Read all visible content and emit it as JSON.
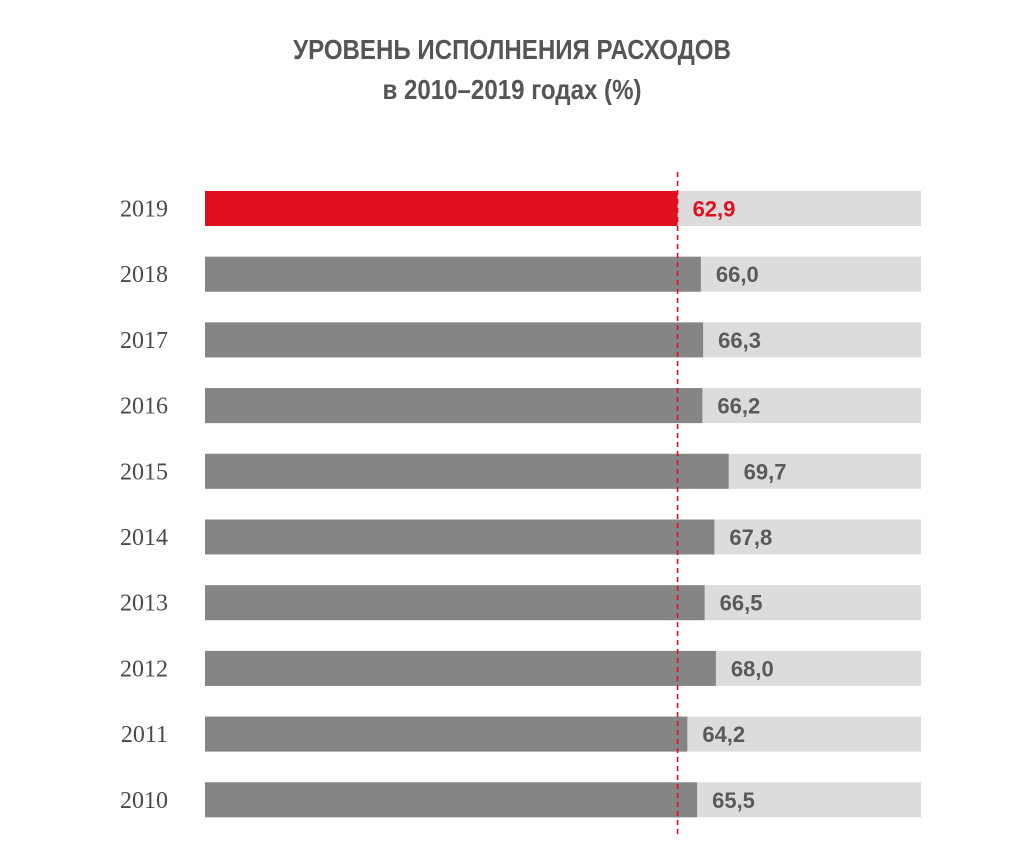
{
  "title": {
    "line1": "УРОВЕНЬ ИСПОЛНЕНИЯ РАСХОДОВ",
    "line2": "в 2010–2019 годах (%)"
  },
  "colors": {
    "highlight": "#e01020",
    "bar": "#858585",
    "track": "#dcdcdc",
    "reference_line": "#e01020",
    "year_text": "#4a4a4a",
    "value_text": "#5a5a5a"
  },
  "chart_data": {
    "type": "bar",
    "orientation": "horizontal",
    "title": "УРОВЕНЬ ИСПОЛНЕНИЯ РАСХОДОВ в 2010–2019 годах (%)",
    "categories": [
      "2019",
      "2018",
      "2017",
      "2016",
      "2015",
      "2014",
      "2013",
      "2012",
      "2011",
      "2010"
    ],
    "values": [
      62.9,
      66.0,
      66.3,
      66.2,
      69.7,
      67.8,
      66.5,
      68.0,
      64.2,
      65.5
    ],
    "value_labels": [
      "62,9",
      "66,0",
      "66,3",
      "66,2",
      "69,7",
      "67,8",
      "66,5",
      "68,0",
      "64,2",
      "65,5"
    ],
    "highlighted_category": "2019",
    "reference_line": 62.9,
    "xlim": [
      0,
      95.3
    ],
    "grid": false,
    "legend": "none"
  }
}
